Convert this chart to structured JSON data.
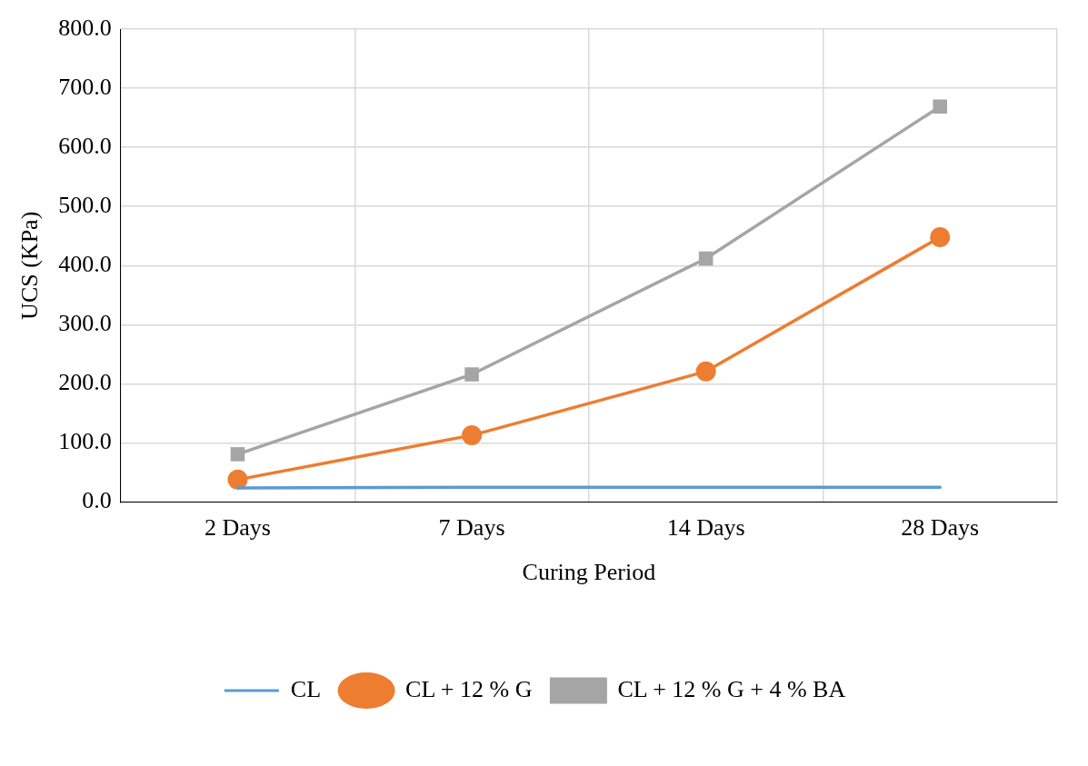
{
  "chart_data": {
    "type": "line",
    "xlabel": "Curing Period",
    "ylabel": "UCS (KPa)",
    "categories": [
      "2 Days",
      "7 Days",
      "14 Days",
      "28 Days"
    ],
    "series": [
      {
        "name": "CL",
        "color": "#5b9bd5",
        "values": [
          24,
          25,
          25,
          25
        ],
        "marker": "none"
      },
      {
        "name": "CL + 12 % G",
        "color": "#ed7d31",
        "values": [
          38,
          113,
          221,
          448
        ],
        "marker": "circle"
      },
      {
        "name": "CL + 12 % G + 4 % BA",
        "color": "#a5a5a5",
        "values": [
          81,
          216,
          412,
          669
        ],
        "marker": "square"
      }
    ],
    "ylim": [
      0,
      800
    ],
    "yticks": [
      {
        "value": 0,
        "label": "0.0"
      },
      {
        "value": 100,
        "label": "100.0"
      },
      {
        "value": 200,
        "label": "200.0"
      },
      {
        "value": 300,
        "label": "300.0"
      },
      {
        "value": 400,
        "label": "400.0"
      },
      {
        "value": 500,
        "label": "500.0"
      },
      {
        "value": 600,
        "label": "600.0"
      },
      {
        "value": 700,
        "label": "700.0"
      },
      {
        "value": 800,
        "label": "800.0"
      }
    ],
    "grid": true,
    "legend": "bottom",
    "line_style": "solid"
  }
}
